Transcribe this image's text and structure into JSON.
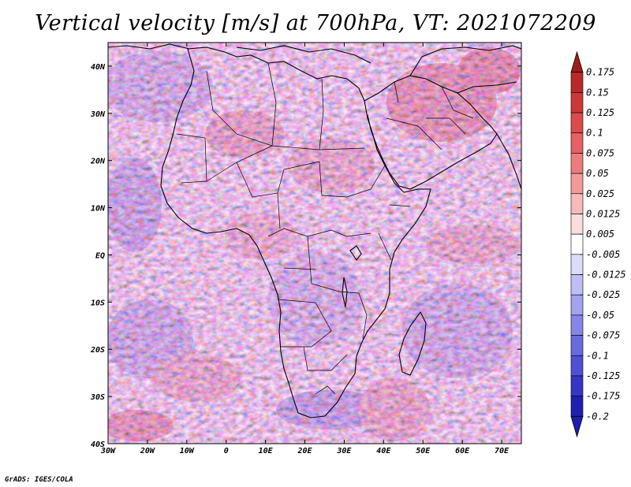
{
  "title": "Vertical velocity [m/s] at 700hPa, VT: 2021072209",
  "credit": "GrADS: IGES/COLA",
  "map": {
    "lon_range": [
      -30,
      75
    ],
    "lat_range": [
      -40,
      45
    ],
    "lon_ticks": [
      "30W",
      "20W",
      "10W",
      "0",
      "10E",
      "20E",
      "30E",
      "40E",
      "50E",
      "60E",
      "70E"
    ],
    "lon_values": [
      -30,
      -20,
      -10,
      0,
      10,
      20,
      30,
      40,
      50,
      60,
      70
    ],
    "lat_ticks": [
      "40N",
      "30N",
      "20N",
      "10N",
      "EQ",
      "10S",
      "20S",
      "30S",
      "40S"
    ],
    "lat_values": [
      40,
      30,
      20,
      10,
      0,
      -10,
      -20,
      -30,
      -40
    ]
  },
  "colorbar": {
    "labels": [
      "0.175",
      "0.15",
      "0.125",
      "0.1",
      "0.075",
      "0.05",
      "0.025",
      "0.0125",
      "0.005",
      "-0.005",
      "-0.0125",
      "-0.025",
      "-0.05",
      "-0.075",
      "-0.1",
      "-0.125",
      "-0.175",
      "-0.2"
    ],
    "colors": [
      "#a01c1c",
      "#b82a2a",
      "#cc3838",
      "#dc4a4a",
      "#e46262",
      "#ec7c7c",
      "#f29a9a",
      "#f6baba",
      "#fadcdc",
      "#ffffff",
      "#dcdcfa",
      "#bebef4",
      "#a2a2ee",
      "#8686e6",
      "#6a6ade",
      "#5050d2",
      "#3636c4",
      "#2020b0",
      "#1c1cb0"
    ]
  }
}
